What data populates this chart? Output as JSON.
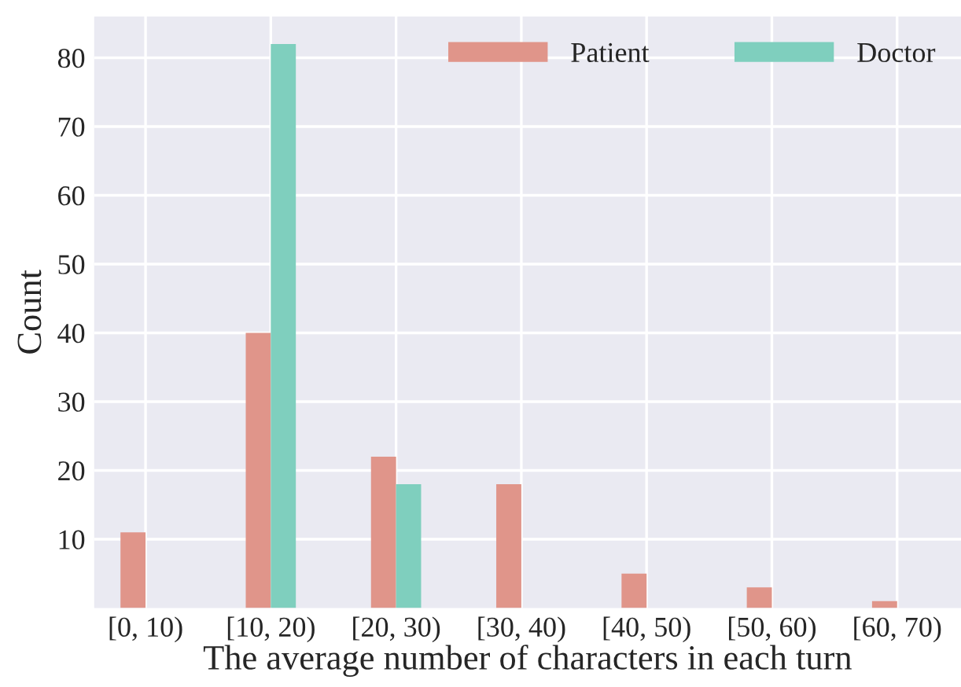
{
  "chart_data": {
    "type": "bar",
    "xlabel": "The average number of characters in each turn",
    "ylabel": "Count",
    "categories": [
      "[0, 10)",
      "[10, 20)",
      "[20, 30)",
      "[30, 40)",
      "[40, 50)",
      "[50, 60)",
      "[60, 70)"
    ],
    "series": [
      {
        "name": "Patient",
        "color": "#e0958a",
        "values": [
          11,
          40,
          22,
          18,
          5,
          3,
          1
        ]
      },
      {
        "name": "Doctor",
        "color": "#7fcfbe",
        "values": [
          0,
          82,
          18,
          0,
          0,
          0,
          0
        ]
      }
    ],
    "ylim": [
      0,
      86
    ],
    "yticks": [
      10,
      20,
      30,
      40,
      50,
      60,
      70,
      80
    ],
    "grid": true,
    "legend": "top right"
  }
}
